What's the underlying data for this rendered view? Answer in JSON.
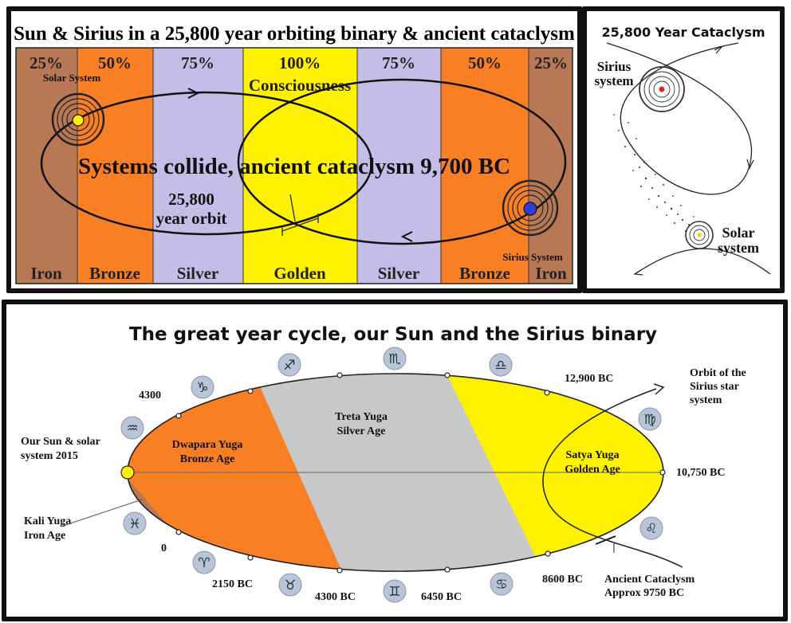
{
  "top": {
    "title": "Sun & Sirius in a 25,800 year orbiting binary & ancient cataclysm",
    "bands": [
      {
        "percent": "25%",
        "age": "Iron",
        "color": "#b87855"
      },
      {
        "percent": "50%",
        "age": "Bronze",
        "color": "#f97f25"
      },
      {
        "percent": "75%",
        "age": "Silver",
        "color": "#c5bde8"
      },
      {
        "percent": "100%",
        "age": "Golden",
        "color": "#fff200"
      },
      {
        "percent": "75%",
        "age": "Silver",
        "color": "#c5bde8"
      },
      {
        "percent": "50%",
        "age": "Bronze",
        "color": "#f97f25"
      },
      {
        "percent": "25%",
        "age": "Iron",
        "color": "#b87855"
      }
    ],
    "consciousness_label": "Consciousness",
    "solar_system_label": "Solar System",
    "sirius_system_label": "Sirius System",
    "collide_label": "Systems collide, ancient cataclysm 9,700 BC",
    "orbit_label_line1": "25,800",
    "orbit_label_line2": "year orbit"
  },
  "side": {
    "title": "25,800 Year Cataclysm",
    "sirius_line1": "Sirius",
    "sirius_line2": "system",
    "solar_line1": "Solar",
    "solar_line2": "system"
  },
  "bottom": {
    "title": "The great year cycle, our Sun and the Sirius binary",
    "colors": {
      "iron": "#b87855",
      "bronze": "#f97f25",
      "silver": "#c8c8c8",
      "golden": "#fff200"
    },
    "ages": {
      "dwapara_line1": "Dwapara Yuga",
      "dwapara_line2": "Bronze Age",
      "treta_line1": "Treta Yuga",
      "treta_line2": "Silver Age",
      "satya_line1": "Satya Yuga",
      "satya_line2": "Golden Age"
    },
    "dates": {
      "d4300": "4300",
      "d0": "0",
      "d2150": "2150 BC",
      "d4300bc": "4300 BC",
      "d6450": "6450 BC",
      "d8600": "8600 BC",
      "d10750": "10,750 BC",
      "d12900": "12,900 BC"
    },
    "our_sun_line1": "Our Sun & solar",
    "our_sun_line2": "system 2015",
    "kali_line1": "Kali Yuga",
    "kali_line2": "Iron Age",
    "orbit_line1": "Orbit of the",
    "orbit_line2": "Sirius star",
    "orbit_line3": "system",
    "cataclysm_line1": "Ancient Cataclysm",
    "cataclysm_line2": "Approx 9750 BC",
    "zodiac": [
      {
        "name": "sagittarius-icon",
        "glyph": "♐"
      },
      {
        "name": "scorpio-icon",
        "glyph": "♏"
      },
      {
        "name": "libra-icon",
        "glyph": "♎"
      },
      {
        "name": "capricorn-icon",
        "glyph": "♑"
      },
      {
        "name": "virgo-icon",
        "glyph": "♍"
      },
      {
        "name": "aquarius-icon",
        "glyph": "♒"
      },
      {
        "name": "pisces-icon",
        "glyph": "♓"
      },
      {
        "name": "leo-icon",
        "glyph": "♌"
      },
      {
        "name": "aries-icon",
        "glyph": "♈"
      },
      {
        "name": "taurus-icon",
        "glyph": "♉"
      },
      {
        "name": "gemini-icon",
        "glyph": "♊"
      },
      {
        "name": "cancer-icon",
        "glyph": "♋"
      }
    ]
  }
}
